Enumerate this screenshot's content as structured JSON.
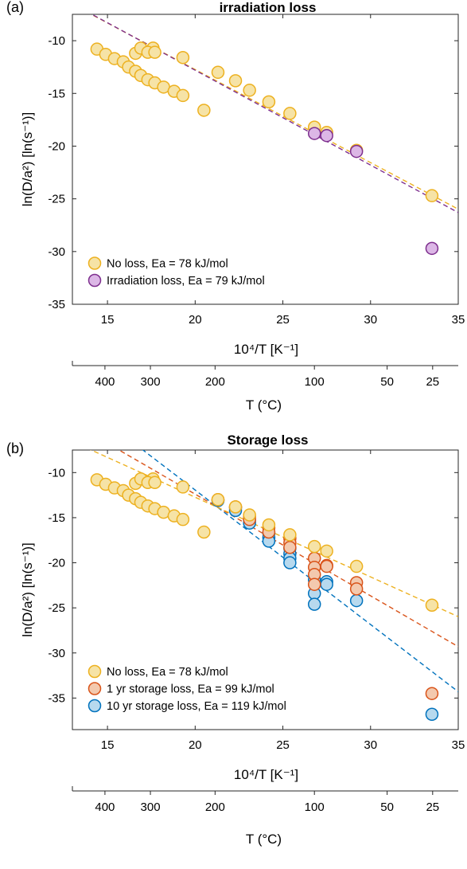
{
  "figure": {
    "panels": [
      {
        "id": "a",
        "panel_label": "(a)",
        "title": "irradiation loss",
        "ylabel": "ln(D/a²) [ln(s⁻¹)]",
        "xlabel": "10⁴/T [K⁻¹]",
        "t_axis_label": "T (°C)",
        "legend": [
          "No loss, Ea = 78 kJ/mol",
          "Irradiation loss, Ea = 79 kJ/mol"
        ]
      },
      {
        "id": "b",
        "panel_label": "(b)",
        "title": "Storage loss",
        "ylabel": "ln(D/a²) [ln(s⁻¹)]",
        "xlabel": "10⁴/T [K⁻¹]",
        "t_axis_label": "T (°C)",
        "legend": [
          "No loss, Ea = 78 kJ/mol",
          "1 yr storage loss, Ea = 99 kJ/mol",
          "10 yr storage loss, Ea = 119 kJ/mol"
        ]
      }
    ]
  },
  "chart_data": [
    {
      "type": "scatter",
      "panel": "(a)",
      "title": "irradiation loss",
      "xlabel": "10⁴/T [K⁻¹]",
      "ylabel": "ln(D/a²) [ln(s⁻¹)]",
      "xlim": [
        13,
        35
      ],
      "ylim": [
        -35,
        -7.5
      ],
      "xticks": [
        15,
        20,
        25,
        30,
        35
      ],
      "yticks": [
        -35,
        -30,
        -25,
        -20,
        -15,
        -10
      ],
      "secondary_x": {
        "label": "T (°C)",
        "ticks_c": [
          400,
          300,
          200,
          100,
          50,
          25
        ]
      },
      "legend_position": "bottom-left",
      "series": [
        {
          "name": "No loss, Ea = 78 kJ/mol",
          "color": "#EDB120",
          "fill": "#F6E3A6",
          "x": [
            14.4,
            14.9,
            15.4,
            15.9,
            16.2,
            16.6,
            16.9,
            17.3,
            17.7,
            18.2,
            18.8,
            19.3,
            16.6,
            16.9,
            17.6,
            17.3,
            17.7,
            19.3,
            20.5,
            21.3,
            22.3,
            23.1,
            24.2,
            25.4,
            26.8,
            27.5,
            29.2,
            33.5
          ],
          "y": [
            -10.8,
            -11.3,
            -11.7,
            -12.0,
            -12.5,
            -12.9,
            -13.3,
            -13.7,
            -14.0,
            -14.4,
            -14.8,
            -15.2,
            -11.2,
            -10.7,
            -10.7,
            -11.1,
            -11.1,
            -11.6,
            -16.6,
            -13.0,
            -13.8,
            -14.7,
            -15.8,
            -16.9,
            -18.2,
            -18.7,
            -20.4,
            -24.7
          ],
          "fit": {
            "x": [
              13,
              35
            ],
            "y": [
              -6.55,
              -25.98
            ]
          }
        },
        {
          "name": "Irradiation loss, Ea = 79 kJ/mol",
          "color": "#7E2F8E",
          "fill": "#DCB7E6",
          "x": [
            26.8,
            27.5,
            29.2,
            33.5
          ],
          "y": [
            -18.8,
            -19.0,
            -20.5,
            -29.7
          ],
          "fit": {
            "x": [
              13,
              35
            ],
            "y": [
              -6.5,
              -26.3
            ]
          }
        }
      ]
    },
    {
      "type": "scatter",
      "panel": "(b)",
      "title": "Storage loss",
      "xlabel": "10⁴/T [K⁻¹]",
      "ylabel": "ln(D/a²) [ln(s⁻¹)]",
      "xlim": [
        13,
        35
      ],
      "ylim": [
        -38.5,
        -7.5
      ],
      "xticks": [
        15,
        20,
        25,
        30,
        35
      ],
      "yticks": [
        -35,
        -30,
        -25,
        -20,
        -15,
        -10
      ],
      "secondary_x": {
        "label": "T (°C)",
        "ticks_c": [
          400,
          300,
          200,
          100,
          50,
          25
        ]
      },
      "legend_position": "bottom-left",
      "series": [
        {
          "name": "10 yr storage loss, Ea = 119 kJ/mol",
          "color": "#0072BD",
          "fill": "#B7D9EE",
          "x": [
            21.3,
            22.3,
            22.3,
            23.1,
            23.1,
            24.2,
            24.2,
            24.2,
            25.4,
            25.4,
            25.4,
            25.4,
            26.8,
            26.8,
            26.8,
            27.5,
            27.5,
            29.2,
            33.5
          ],
          "y": [
            -13.1,
            -13.9,
            -14.2,
            -15.3,
            -15.6,
            -16.7,
            -17.2,
            -17.6,
            -18.4,
            -19.0,
            -19.5,
            -20.0,
            -21.9,
            -23.4,
            -24.6,
            -22.1,
            -22.4,
            -24.2,
            -36.8
          ],
          "fit": {
            "x": [
              13,
              35
            ],
            "y": [
              -1.5,
              -34.3
            ]
          }
        },
        {
          "name": "1 yr storage loss, Ea = 99 kJ/mol",
          "color": "#D95319",
          "fill": "#F3C9AE",
          "x": [
            21.3,
            22.3,
            23.1,
            23.1,
            24.2,
            24.2,
            25.4,
            25.4,
            25.4,
            26.8,
            26.8,
            26.8,
            26.8,
            27.5,
            27.5,
            29.2,
            29.2,
            33.5
          ],
          "y": [
            -13.0,
            -13.8,
            -14.9,
            -15.2,
            -16.1,
            -16.6,
            -17.3,
            -17.8,
            -18.3,
            -19.5,
            -20.5,
            -21.3,
            -22.4,
            -20.3,
            -20.4,
            -22.2,
            -22.9,
            -34.5
          ],
          "fit": {
            "x": [
              13,
              35
            ],
            "y": [
              -4.5,
              -29.3
            ]
          }
        },
        {
          "name": "No loss, Ea = 78 kJ/mol",
          "color": "#EDB120",
          "fill": "#F6E3A6",
          "x": [
            14.4,
            14.9,
            15.4,
            15.9,
            16.2,
            16.6,
            16.9,
            17.3,
            17.7,
            18.2,
            18.8,
            19.3,
            16.6,
            16.9,
            17.6,
            17.3,
            17.7,
            19.3,
            20.5,
            21.3,
            22.3,
            23.1,
            24.2,
            25.4,
            26.8,
            27.5,
            29.2,
            33.5
          ],
          "y": [
            -10.8,
            -11.3,
            -11.7,
            -12.0,
            -12.5,
            -12.9,
            -13.3,
            -13.7,
            -14.0,
            -14.4,
            -14.8,
            -15.2,
            -11.2,
            -10.7,
            -10.7,
            -11.1,
            -11.1,
            -11.6,
            -16.6,
            -13.0,
            -13.8,
            -14.7,
            -15.8,
            -16.9,
            -18.2,
            -18.7,
            -20.4,
            -24.7
          ],
          "fit": {
            "x": [
              13,
              35
            ],
            "y": [
              -6.55,
              -25.98
            ]
          }
        }
      ]
    }
  ]
}
